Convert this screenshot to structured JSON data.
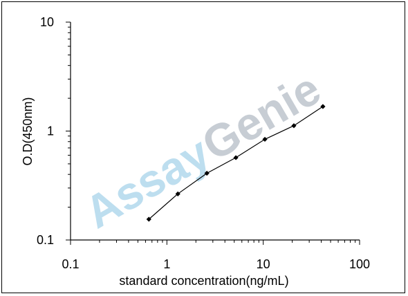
{
  "watermark": {
    "part1": "Assay",
    "part2": "Genie"
  },
  "chart_data": {
    "type": "line",
    "x_scale": "log",
    "y_scale": "log",
    "xlim": [
      0.1,
      100
    ],
    "ylim": [
      0.1,
      10
    ],
    "x_ticks": [
      {
        "value": 0.1,
        "label": "0.1"
      },
      {
        "value": 1,
        "label": "1"
      },
      {
        "value": 10,
        "label": "10"
      },
      {
        "value": 100,
        "label": "100"
      }
    ],
    "y_ticks": [
      {
        "value": 0.1,
        "label": "0.1"
      },
      {
        "value": 1,
        "label": "1"
      },
      {
        "value": 10,
        "label": "10"
      }
    ],
    "xlabel": "standard concentration(ng/mL)",
    "ylabel": "O.D(450nm)",
    "grid": false,
    "marker": "diamond",
    "line_color": "#000000",
    "series": [
      {
        "x": [
          0.65,
          1.3,
          2.6,
          5.2,
          10.4,
          20.8,
          41.6
        ],
        "y": [
          0.155,
          0.265,
          0.41,
          0.57,
          0.84,
          1.12,
          1.68
        ]
      }
    ]
  }
}
